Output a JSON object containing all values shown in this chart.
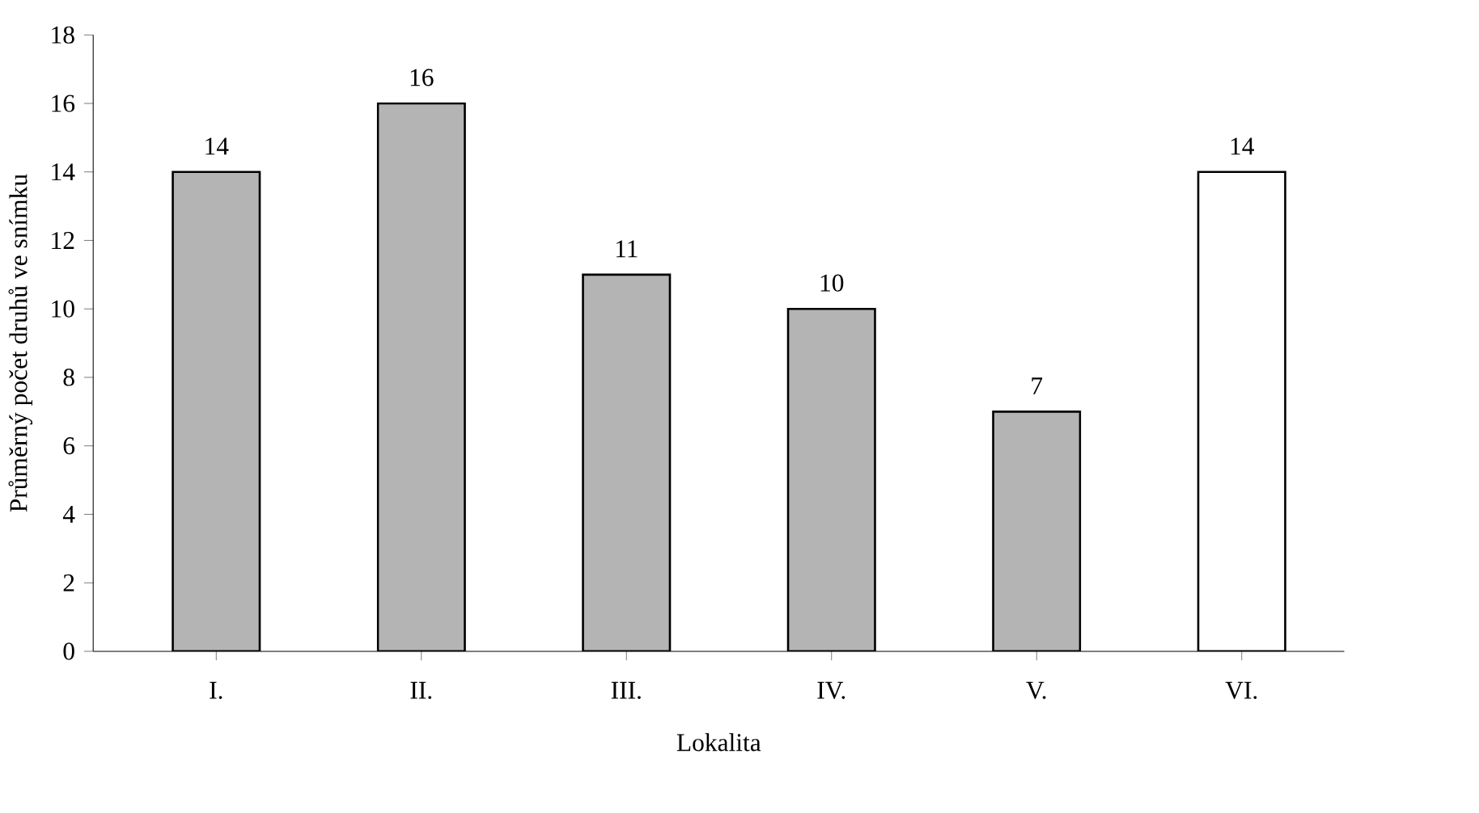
{
  "chart_data": {
    "type": "bar",
    "ylabel": "Průměrný počet druhů ve snímku",
    "xlabel": "Lokalita",
    "categories": [
      "I.",
      "II.",
      "III.",
      "IV.",
      "V.",
      "VI."
    ],
    "values": [
      14,
      16,
      11,
      10,
      7,
      14
    ],
    "colors": [
      "#b4b4b4",
      "#b4b4b4",
      "#b4b4b4",
      "#b4b4b4",
      "#b4b4b4",
      "#ffffff"
    ],
    "ylim": [
      0,
      18
    ],
    "yticks": [
      0,
      2,
      4,
      6,
      8,
      10,
      12,
      14,
      16,
      18
    ],
    "data_labels": true,
    "grid": false
  }
}
